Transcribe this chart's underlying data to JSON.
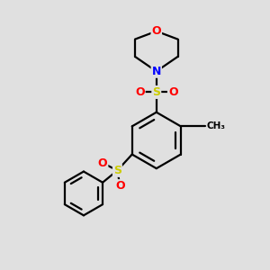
{
  "bg_color": "#e0e0e0",
  "bond_color": "#000000",
  "bond_width": 1.6,
  "atom_colors": {
    "O": "#ff0000",
    "N": "#0000ff",
    "S": "#cccc00",
    "C": "#000000"
  },
  "font_size_atom": 8.5,
  "fig_size": [
    3.0,
    3.0
  ],
  "dpi": 100
}
